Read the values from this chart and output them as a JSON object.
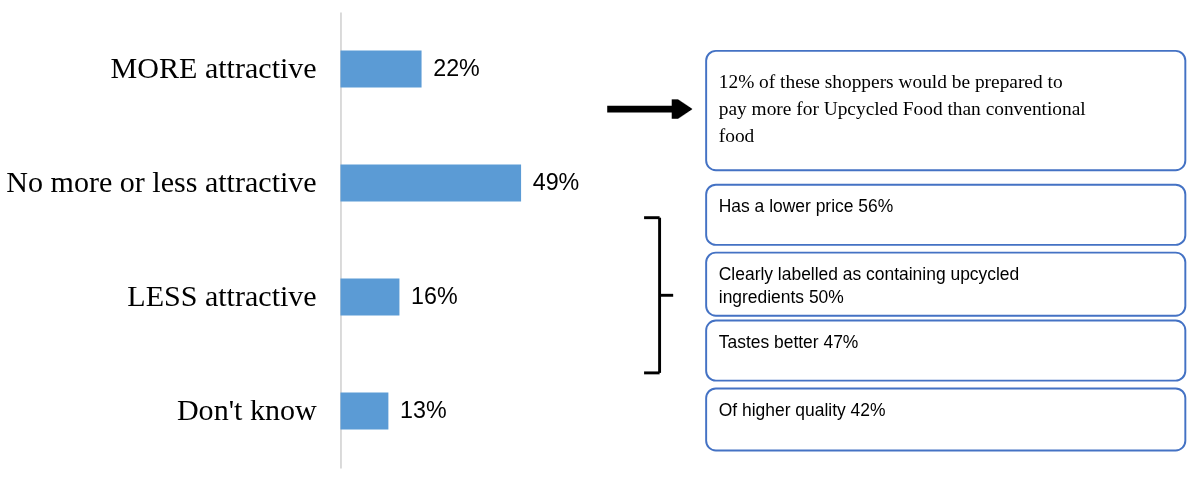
{
  "chart_data": {
    "type": "bar",
    "orientation": "horizontal",
    "categories": [
      "MORE attractive",
      "No more or less attractive",
      "LESS attractive",
      "Don't know"
    ],
    "values": [
      22,
      49,
      16,
      13
    ],
    "value_labels": [
      "22%",
      "49%",
      "16%",
      "13%"
    ],
    "color": "#5b9bd5",
    "annotations": [
      "12% of these shoppers would be prepared to pay more for Upcycled Food than conventional food",
      "Has a lower price 56%",
      "Clearly labelled as containing upcycled ingredients 50%",
      "Tastes better 47%",
      "Of higher quality 42%"
    ]
  }
}
